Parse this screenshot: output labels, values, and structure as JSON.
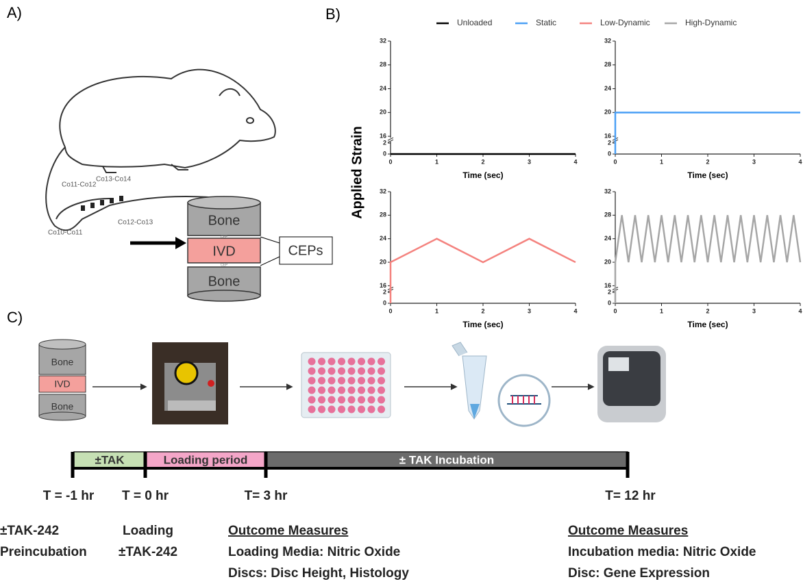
{
  "panel_a": {
    "label": "A)",
    "segments": [
      "Co11-Co12",
      "Co13-Co14",
      "Co12-Co13",
      "Co10-Co11"
    ],
    "disc": {
      "top": "Bone",
      "middle": "IVD",
      "bottom": "Bone",
      "cep": "CEP",
      "callout": "CEPs"
    }
  },
  "panel_b": {
    "label": "B)",
    "y_label": "Applied Strain"
  },
  "chart_data": [
    {
      "type": "line",
      "x": [
        0,
        4
      ],
      "series": [
        {
          "name": "Unloaded",
          "color": "#000000",
          "values": [
            0,
            0
          ]
        }
      ],
      "xlabel": "Time (sec)",
      "xlim": [
        0,
        4
      ],
      "xticks": [
        0,
        1,
        2,
        3,
        4
      ],
      "ylim": [
        0,
        32
      ],
      "yticks": [
        0,
        2,
        16,
        20,
        24,
        28,
        32
      ],
      "ybreak": [
        2,
        16
      ]
    },
    {
      "type": "line",
      "x": [
        0,
        0,
        4
      ],
      "series": [
        {
          "name": "Static",
          "color": "#4a9ff5",
          "values": [
            0,
            20,
            20
          ]
        }
      ],
      "xlabel": "Time (sec)",
      "xlim": [
        0,
        4
      ],
      "xticks": [
        0,
        1,
        2,
        3,
        4
      ],
      "ylim": [
        0,
        32
      ],
      "yticks": [
        0,
        2,
        16,
        20,
        24,
        28,
        32
      ],
      "ybreak": [
        2,
        16
      ]
    },
    {
      "type": "line",
      "x": [
        0,
        0,
        1,
        2,
        3,
        4
      ],
      "series": [
        {
          "name": "Low-Dynamic",
          "color": "#f4827e",
          "values": [
            0,
            20,
            24,
            20,
            24,
            20
          ]
        }
      ],
      "xlabel": "Time (sec)",
      "xlim": [
        0,
        4
      ],
      "xticks": [
        0,
        1,
        2,
        3,
        4
      ],
      "ylim": [
        0,
        32
      ],
      "yticks": [
        0,
        2,
        16,
        20,
        24,
        28,
        32
      ],
      "ybreak": [
        2,
        16
      ]
    },
    {
      "type": "line",
      "x": [
        0,
        0,
        0.143,
        0.286,
        0.429,
        0.571,
        0.714,
        0.857,
        1,
        1.143,
        1.286,
        1.429,
        1.571,
        1.714,
        1.857,
        2,
        2.143,
        2.286,
        2.429,
        2.571,
        2.714,
        2.857,
        3,
        3.143,
        3.286,
        3.429,
        3.571,
        3.714,
        3.857,
        4
      ],
      "series": [
        {
          "name": "High-Dynamic",
          "color": "#a6a6a6",
          "values": [
            0,
            20,
            28,
            20,
            28,
            20,
            28,
            20,
            28,
            20,
            28,
            20,
            28,
            20,
            28,
            20,
            28,
            20,
            28,
            20,
            28,
            20,
            28,
            20,
            28,
            20,
            28,
            20,
            28,
            20
          ]
        }
      ],
      "xlabel": "Time (sec)",
      "xlim": [
        0,
        4
      ],
      "xticks": [
        0,
        1,
        2,
        3,
        4
      ],
      "ylim": [
        0,
        32
      ],
      "yticks": [
        0,
        2,
        16,
        20,
        24,
        28,
        32
      ],
      "ybreak": [
        2,
        16
      ]
    }
  ],
  "panel_c": {
    "label": "C)",
    "disc": {
      "top": "Bone",
      "middle": "IVD",
      "bottom": "Bone"
    },
    "timeline": [
      {
        "label": "±TAK",
        "color": "#c6e0b4"
      },
      {
        "label": "Loading period",
        "color": "#f4a6c8"
      },
      {
        "label": "± TAK Incubation",
        "color": "#6b6b6b"
      }
    ],
    "times": [
      "T = -1 hr",
      "T = 0 hr",
      "T= 3 hr",
      "T= 12 hr"
    ],
    "notes": [
      {
        "lines": [
          "±TAK-242",
          "Preincubation"
        ]
      },
      {
        "lines": [
          "Loading",
          "±TAK-242"
        ]
      },
      {
        "heading": "Outcome Measures",
        "lines": [
          "Loading Media: Nitric Oxide",
          "Discs: Disc Height, Histology"
        ]
      },
      {
        "heading": "Outcome Measures",
        "lines": [
          "Incubation media: Nitric Oxide",
          "Disc: Gene Expression"
        ]
      }
    ]
  }
}
